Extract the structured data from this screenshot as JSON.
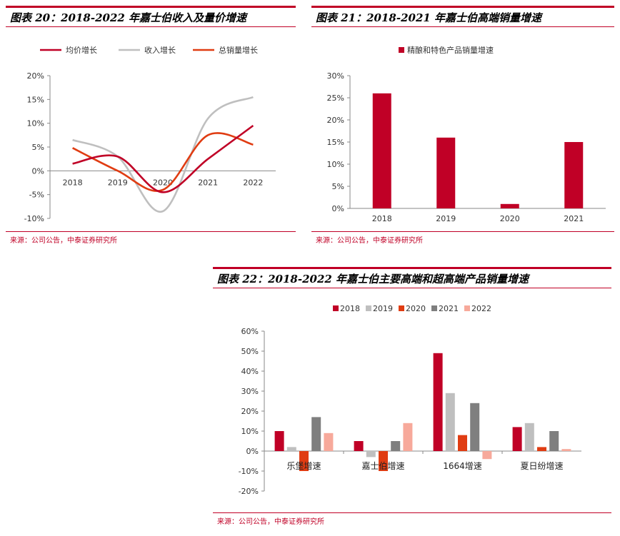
{
  "colors": {
    "accent": "#c00026",
    "avg_price": "#c00026",
    "revenue": "#bfbfbf",
    "total_volume": "#e03c12",
    "y2018": "#c00026",
    "y2019": "#bfbfbf",
    "y2020": "#e03c12",
    "y2021": "#7f7f7f",
    "y2022": "#f7a99b"
  },
  "fig20": {
    "title": "图表 20：2018-2022 年嘉士伯收入及量价增速",
    "source": "来源：公司公告，中泰证券研究所"
  },
  "fig21": {
    "title": "图表 21：2018-2021 年嘉士伯高端销量增速",
    "source": "来源：公司公告，中泰证券研究所"
  },
  "fig22": {
    "title": "图表 22：2018-2022 年嘉士伯主要高端和超高端产品销量增速",
    "source": "来源：公司公告，中泰证券研究所"
  },
  "chart_data": [
    {
      "type": "line",
      "x": [
        "2018",
        "2019",
        "2020",
        "2021",
        "2022"
      ],
      "series": [
        {
          "name": "均价增长",
          "values": [
            1.5,
            3.0,
            -4.5,
            2.5,
            9.5
          ]
        },
        {
          "name": "收入增长",
          "values": [
            6.5,
            3.0,
            -8.5,
            11.0,
            15.5
          ]
        },
        {
          "name": "总销量增长",
          "values": [
            4.8,
            0.0,
            -4.0,
            7.5,
            5.5
          ]
        }
      ],
      "yticks": [
        "20%",
        "15%",
        "10%",
        "5%",
        "0%",
        "-5%",
        "-10%"
      ],
      "ylim": [
        -10,
        20
      ],
      "legend_position": "top"
    },
    {
      "type": "bar",
      "categories": [
        "2018",
        "2019",
        "2020",
        "2021"
      ],
      "series": [
        {
          "name": "精酿和特色产品销量增速",
          "values": [
            26,
            16,
            1,
            15
          ]
        }
      ],
      "yticks": [
        "30%",
        "25%",
        "20%",
        "15%",
        "10%",
        "5%",
        "0%"
      ],
      "ylim": [
        0,
        30
      ],
      "legend_position": "top"
    },
    {
      "type": "bar",
      "categories": [
        "乐堡增速",
        "嘉士伯增速",
        "1664增速",
        "夏日纷增速"
      ],
      "series": [
        {
          "name": "2018",
          "values": [
            10,
            5,
            49,
            12
          ]
        },
        {
          "name": "2019",
          "values": [
            2,
            -3,
            29,
            14
          ]
        },
        {
          "name": "2020",
          "values": [
            -10,
            -10,
            8,
            2
          ]
        },
        {
          "name": "2021",
          "values": [
            17,
            5,
            24,
            10
          ]
        },
        {
          "name": "2022",
          "values": [
            9,
            14,
            -4,
            1
          ]
        }
      ],
      "yticks": [
        "60%",
        "50%",
        "40%",
        "30%",
        "20%",
        "10%",
        "0%",
        "-10%",
        "-20%"
      ],
      "ylim": [
        -20,
        60
      ],
      "legend_position": "top"
    }
  ]
}
